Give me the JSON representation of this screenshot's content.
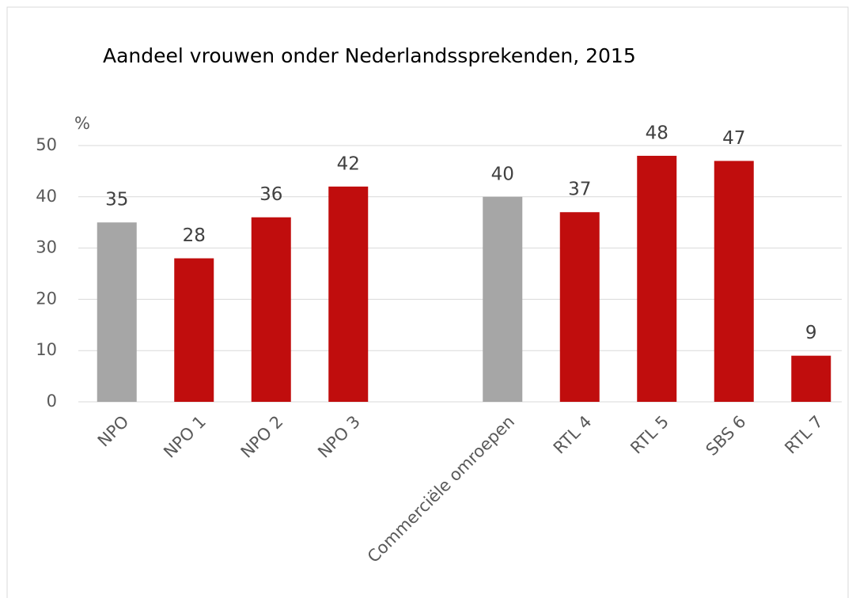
{
  "chart_data": {
    "type": "bar",
    "title": "Aandeel vrouwen onder Nederlandssprekenden,  2015",
    "y_label": "%",
    "categories": [
      "NPO",
      "NPO 1",
      "NPO 2",
      "NPO 3",
      null,
      "Commerciële omroepen",
      "RTL 4",
      "RTL 5",
      "SBS 6",
      "RTL 7"
    ],
    "values": [
      35,
      28,
      36,
      42,
      null,
      40,
      37,
      48,
      47,
      9
    ],
    "colors": [
      "#a6a6a6",
      "#c00d0d",
      "#c00d0d",
      "#c00d0d",
      null,
      "#a6a6a6",
      "#c00d0d",
      "#c00d0d",
      "#c00d0d",
      "#c00d0d"
    ],
    "ylim": [
      0,
      50
    ],
    "yticks": [
      0,
      10,
      20,
      30,
      40,
      50
    ],
    "grid": true
  }
}
